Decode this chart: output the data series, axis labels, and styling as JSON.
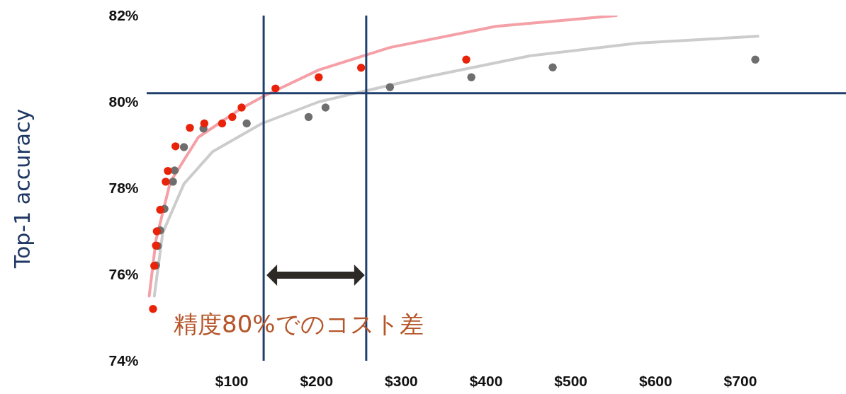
{
  "chart_data": {
    "type": "scatter",
    "ylabel": "Top-1 accuracy",
    "xlim": [
      0,
      825
    ],
    "ylim": [
      74,
      82
    ],
    "xticks": [
      {
        "value": 100,
        "label": "$100"
      },
      {
        "value": 200,
        "label": "$200"
      },
      {
        "value": 300,
        "label": "$300"
      },
      {
        "value": 400,
        "label": "$400"
      },
      {
        "value": 500,
        "label": "$500"
      },
      {
        "value": 600,
        "label": "$600"
      },
      {
        "value": 700,
        "label": "$700"
      }
    ],
    "yticks": [
      {
        "value": 74,
        "label": "74%"
      },
      {
        "value": 76,
        "label": "76%"
      },
      {
        "value": 78,
        "label": "78%"
      },
      {
        "value": 80,
        "label": "80%"
      },
      {
        "value": 82,
        "label": "82%"
      }
    ],
    "grid": false,
    "series": [
      {
        "type": "line",
        "color": "#cccccc",
        "x": [
          9,
          19,
          44,
          78,
          136,
          203,
          257,
          328,
          453,
          579,
          721
        ],
        "values": [
          75.5,
          76.97,
          78.1,
          78.85,
          79.5,
          80.0,
          80.25,
          80.57,
          81.07,
          81.36,
          81.52
        ]
      },
      {
        "type": "line",
        "color": "#f4a0a6",
        "x": [
          3,
          11,
          28,
          61,
          111,
          138,
          203,
          287,
          412,
          554
        ],
        "values": [
          75.5,
          76.8,
          78.15,
          79.18,
          79.84,
          80.13,
          80.74,
          81.26,
          81.75,
          82.0
        ]
      },
      {
        "type": "scatter",
        "marker": "circle",
        "color": "#6e6e6e",
        "x": [
          11,
          13,
          16,
          21,
          31,
          33,
          44,
          67,
          118,
          191,
          211,
          287,
          383,
          479,
          718
        ],
        "values": [
          76.21,
          76.66,
          77.02,
          77.52,
          78.15,
          78.41,
          78.95,
          79.38,
          79.5,
          79.65,
          79.87,
          80.34,
          80.57,
          80.8,
          80.98
        ]
      },
      {
        "type": "scatter",
        "marker": "circle",
        "color": "#e8230a",
        "x": [
          7.5,
          9,
          11,
          12,
          16,
          22.5,
          25,
          34,
          51,
          68,
          89,
          101,
          112,
          152,
          203,
          253,
          377
        ],
        "values": [
          75.2,
          76.2,
          76.67,
          77.0,
          77.5,
          78.15,
          78.4,
          78.97,
          79.4,
          79.5,
          79.5,
          79.65,
          79.87,
          80.31,
          80.57,
          80.79,
          80.98
        ]
      }
    ],
    "ref_lines": [
      {
        "axis": "y",
        "value": 80.2,
        "color": "#1f3f6e"
      },
      {
        "axis": "x",
        "value": 138,
        "color": "#1f3f6e"
      },
      {
        "axis": "x",
        "value": 259,
        "color": "#1f3f6e"
      }
    ],
    "annotations": [
      "精度80%でのコスト差"
    ]
  }
}
